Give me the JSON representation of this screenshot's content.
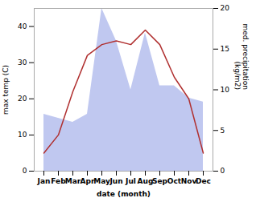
{
  "chart_data": {
    "type": "combo",
    "categories": [
      "Jan",
      "Feb",
      "Mar",
      "Apr",
      "May",
      "Jun",
      "Jul",
      "Aug",
      "Sep",
      "Oct",
      "Nov",
      "Dec"
    ],
    "series": [
      {
        "type": "area",
        "color": "#c0c8f0",
        "axis": "y2",
        "values": [
          7,
          6.5,
          6,
          7,
          20,
          16,
          10,
          17,
          10.5,
          10.5,
          9,
          8.5
        ]
      },
      {
        "type": "line",
        "color": "#b03030",
        "values": [
          5,
          10,
          22,
          32,
          35,
          36,
          35,
          39,
          35,
          26,
          20,
          5
        ]
      }
    ],
    "xlabel": "date (month)",
    "ylabel": "max temp (C)",
    "y2label": "med. precipitation\n(kg/m2)",
    "ylim": [
      0,
      45
    ],
    "yticks": [
      0,
      10,
      20,
      30,
      40
    ],
    "y2lim": [
      0,
      20
    ],
    "y2ticks": [
      0,
      5,
      10,
      15,
      20
    ]
  }
}
